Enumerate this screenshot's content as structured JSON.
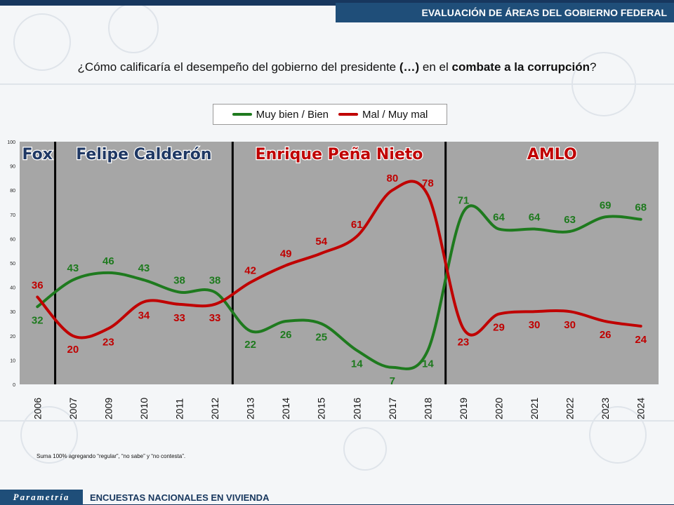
{
  "header": {
    "title": "EVALUACIÓN DE ÁREAS DEL GOBIERNO FEDERAL"
  },
  "question": {
    "part1": "¿Cómo calificaría el desempeño del gobierno del presidente ",
    "bold1": "(…)",
    "part2": " en el ",
    "bold2": "combate a la corrupción",
    "part3": "?"
  },
  "legend": {
    "good_label": "Muy bien / Bien",
    "bad_label": "Mal / Muy mal"
  },
  "colors": {
    "good": "#1e7a1e",
    "bad": "#c00000",
    "plot_bg": "#a6a6a6",
    "header_bg": "#1f4e79"
  },
  "chart_data": {
    "type": "line",
    "x": [
      "2006",
      "2007",
      "2009",
      "2010",
      "2011",
      "2012",
      "2013",
      "2014",
      "2015",
      "2016",
      "2017",
      "2018",
      "2019",
      "2020",
      "2021",
      "2022",
      "2023",
      "2024"
    ],
    "series": [
      {
        "name": "Muy bien / Bien",
        "values": [
          32,
          43,
          46,
          43,
          38,
          38,
          22,
          26,
          25,
          14,
          7,
          14,
          71,
          64,
          64,
          63,
          69,
          68
        ]
      },
      {
        "name": "Mal / Muy mal",
        "values": [
          36,
          20,
          23,
          34,
          33,
          33,
          42,
          49,
          54,
          61,
          80,
          78,
          23,
          29,
          30,
          30,
          26,
          24
        ]
      }
    ],
    "ylim": [
      0,
      100
    ],
    "yticks": [
      0,
      10,
      20,
      30,
      40,
      50,
      60,
      70,
      80,
      90,
      100
    ],
    "periods": [
      {
        "label": "Fox",
        "color": "#1f3864"
      },
      {
        "label": "Felipe Calderón",
        "color": "#1f3864"
      },
      {
        "label": "Enrique Peña Nieto",
        "color": "#c00000"
      },
      {
        "label": "AMLO",
        "color": "#c00000"
      }
    ]
  },
  "footnote": "Suma 100% agregando “regular”, “no sabe” y “no contesta”.",
  "footer": {
    "logo": "Parametría",
    "text": "ENCUESTAS NACIONALES EN VIVIENDA"
  }
}
